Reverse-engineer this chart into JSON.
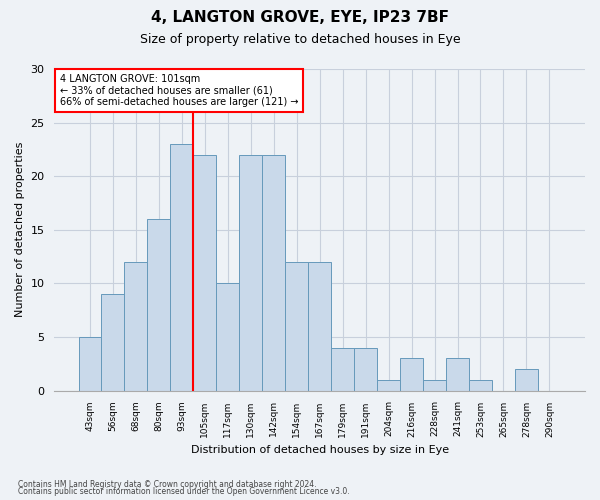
{
  "title_line1": "4, LANGTON GROVE, EYE, IP23 7BF",
  "title_line2": "Size of property relative to detached houses in Eye",
  "xlabel": "Distribution of detached houses by size in Eye",
  "ylabel": "Number of detached properties",
  "bar_labels": [
    "43sqm",
    "56sqm",
    "68sqm",
    "80sqm",
    "93sqm",
    "105sqm",
    "117sqm",
    "130sqm",
    "142sqm",
    "154sqm",
    "167sqm",
    "179sqm",
    "191sqm",
    "204sqm",
    "216sqm",
    "228sqm",
    "241sqm",
    "253sqm",
    "265sqm",
    "278sqm",
    "290sqm"
  ],
  "bar_values": [
    5,
    9,
    12,
    16,
    23,
    22,
    10,
    22,
    22,
    12,
    12,
    4,
    4,
    1,
    3,
    1,
    3,
    1,
    0,
    2,
    0
  ],
  "bar_color": "#c9d9ea",
  "bar_edge_color": "#6699bb",
  "red_line_x": 4.5,
  "annotation_text": "4 LANGTON GROVE: 101sqm\n← 33% of detached houses are smaller (61)\n66% of semi-detached houses are larger (121) →",
  "annotation_box_color": "white",
  "annotation_box_edge_color": "red",
  "ylim": [
    0,
    30
  ],
  "yticks": [
    0,
    5,
    10,
    15,
    20,
    25,
    30
  ],
  "grid_color": "#c8d0dc",
  "footer_line1": "Contains HM Land Registry data © Crown copyright and database right 2024.",
  "footer_line2": "Contains public sector information licensed under the Open Government Licence v3.0.",
  "background_color": "#eef2f6",
  "title_fontsize": 11,
  "subtitle_fontsize": 9,
  "xlabel_fontsize": 8,
  "ylabel_fontsize": 8
}
